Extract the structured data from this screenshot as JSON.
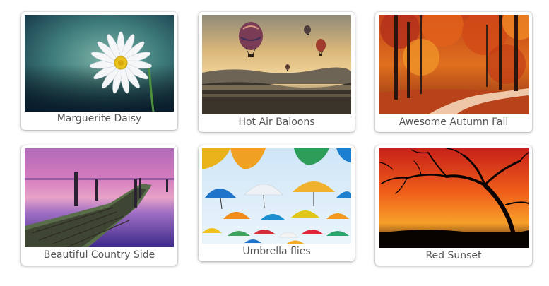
{
  "gallery": {
    "items": [
      {
        "caption": "Marguerite Daisy"
      },
      {
        "caption": "Hot Air Baloons"
      },
      {
        "caption": "Awesome Autumn Fall"
      },
      {
        "caption": "Beautiful Country Side"
      },
      {
        "caption": "Umbrella flies"
      },
      {
        "caption": "Red Sunset"
      }
    ]
  }
}
